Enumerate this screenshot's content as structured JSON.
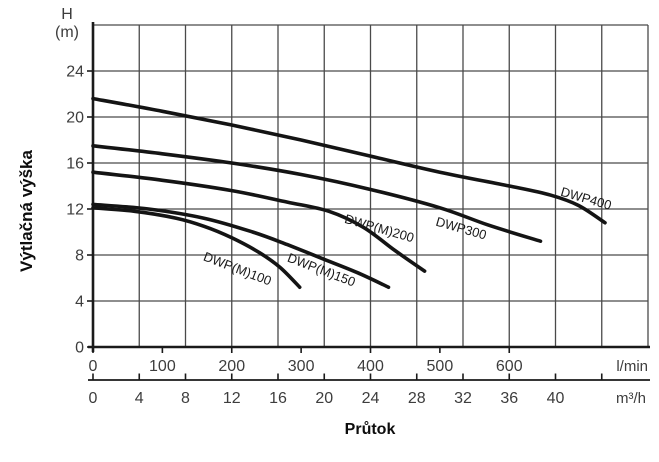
{
  "axes": {
    "y_unit_line1": "H",
    "y_unit_line2": "(m)",
    "y_label": "Výtlačná výška",
    "x_label": "Průtok",
    "x_unit_primary": "l/min",
    "x_unit_secondary": "m³/h"
  },
  "colors": {
    "background": "#ffffff",
    "grid": "#4a4a4a",
    "axis": "#1a1a1a",
    "curve": "#141414",
    "tick_text": "#3d3d3d",
    "label_text": "#0d0d0d"
  },
  "chart_data": {
    "type": "line",
    "title": "",
    "xlabel": "Průtok",
    "ylabel": "Výtlačná výška",
    "grid": true,
    "y_axis": {
      "unit": "H (m)",
      "ticks": [
        0,
        4,
        8,
        12,
        16,
        20,
        24
      ],
      "range": [
        0,
        28
      ],
      "grid_step": 4
    },
    "x_axes": [
      {
        "unit": "l/min",
        "ticks": [
          0,
          100,
          200,
          300,
          400,
          500,
          600
        ],
        "range": [
          0,
          800
        ]
      },
      {
        "unit": "m³/h",
        "ticks": [
          0,
          4,
          8,
          12,
          16,
          20,
          24,
          28,
          32,
          36,
          40
        ],
        "range": [
          0,
          48
        ],
        "grid_step": 4,
        "tick_extent": 44
      }
    ],
    "series": [
      {
        "name": "DWP(M)100",
        "points": [
          [
            0,
            12.1
          ],
          [
            60,
            11.8
          ],
          [
            120,
            11.2
          ],
          [
            160,
            10.5
          ],
          [
            200,
            9.5
          ],
          [
            240,
            8.2
          ],
          [
            270,
            6.9
          ],
          [
            298,
            5.2
          ]
        ],
        "label": {
          "q_lmin": 206,
          "head_m": 6.8,
          "angle_deg": 21
        }
      },
      {
        "name": "DWP(M)150",
        "points": [
          [
            0,
            12.4
          ],
          [
            80,
            12.0
          ],
          [
            160,
            11.2
          ],
          [
            230,
            10.0
          ],
          [
            280,
            8.9
          ],
          [
            330,
            7.7
          ],
          [
            380,
            6.5
          ],
          [
            426,
            5.2
          ]
        ],
        "label": {
          "q_lmin": 327,
          "head_m": 6.7,
          "angle_deg": 21
        }
      },
      {
        "name": "DWP(M)200",
        "points": [
          [
            0,
            15.2
          ],
          [
            100,
            14.5
          ],
          [
            200,
            13.6
          ],
          [
            280,
            12.6
          ],
          [
            340,
            11.8
          ],
          [
            390,
            10.4
          ],
          [
            435,
            8.4
          ],
          [
            478,
            6.6
          ]
        ],
        "label": {
          "q_lmin": 411,
          "head_m": 10.3,
          "angle_deg": 16
        }
      },
      {
        "name": "DWP300",
        "points": [
          [
            0,
            17.5
          ],
          [
            100,
            16.8
          ],
          [
            200,
            16.0
          ],
          [
            300,
            15.0
          ],
          [
            400,
            13.7
          ],
          [
            500,
            12.1
          ],
          [
            570,
            10.6
          ],
          [
            645,
            9.2
          ]
        ],
        "label": {
          "q_lmin": 529,
          "head_m": 10.3,
          "angle_deg": 16
        }
      },
      {
        "name": "DWP400",
        "points": [
          [
            0,
            21.6
          ],
          [
            100,
            20.5
          ],
          [
            200,
            19.3
          ],
          [
            300,
            18.0
          ],
          [
            400,
            16.6
          ],
          [
            500,
            15.2
          ],
          [
            600,
            14.0
          ],
          [
            660,
            13.2
          ],
          [
            700,
            12.3
          ],
          [
            738,
            10.8
          ]
        ],
        "label": {
          "q_lmin": 709,
          "head_m": 12.9,
          "angle_deg": 16
        }
      }
    ]
  }
}
